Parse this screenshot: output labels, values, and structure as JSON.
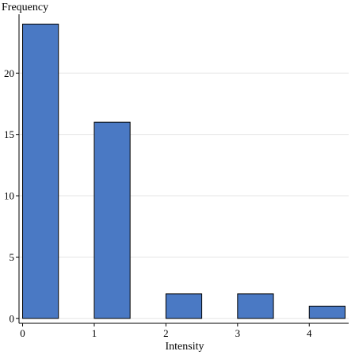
{
  "chart_data": {
    "type": "bar",
    "title": "",
    "xlabel": "Intensity",
    "ylabel": "Frequency",
    "bins": [
      {
        "start": 0,
        "end": 0.5,
        "value": 24
      },
      {
        "start": 1,
        "end": 1.5,
        "value": 16
      },
      {
        "start": 2,
        "end": 2.5,
        "value": 2
      },
      {
        "start": 3,
        "end": 3.5,
        "value": 2
      },
      {
        "start": 4,
        "end": 4.5,
        "value": 1
      }
    ],
    "xticks": [
      0,
      1,
      2,
      3,
      4
    ],
    "yticks": [
      0,
      5,
      10,
      15,
      20
    ],
    "xlim": [
      -0.05,
      4.55
    ],
    "ylim": [
      -0.4,
      24.8
    ],
    "grid": "horizontal",
    "bar_color": "#4a79c4",
    "bar_edge_color": "#000000",
    "grid_color": "#e6e6e6"
  }
}
